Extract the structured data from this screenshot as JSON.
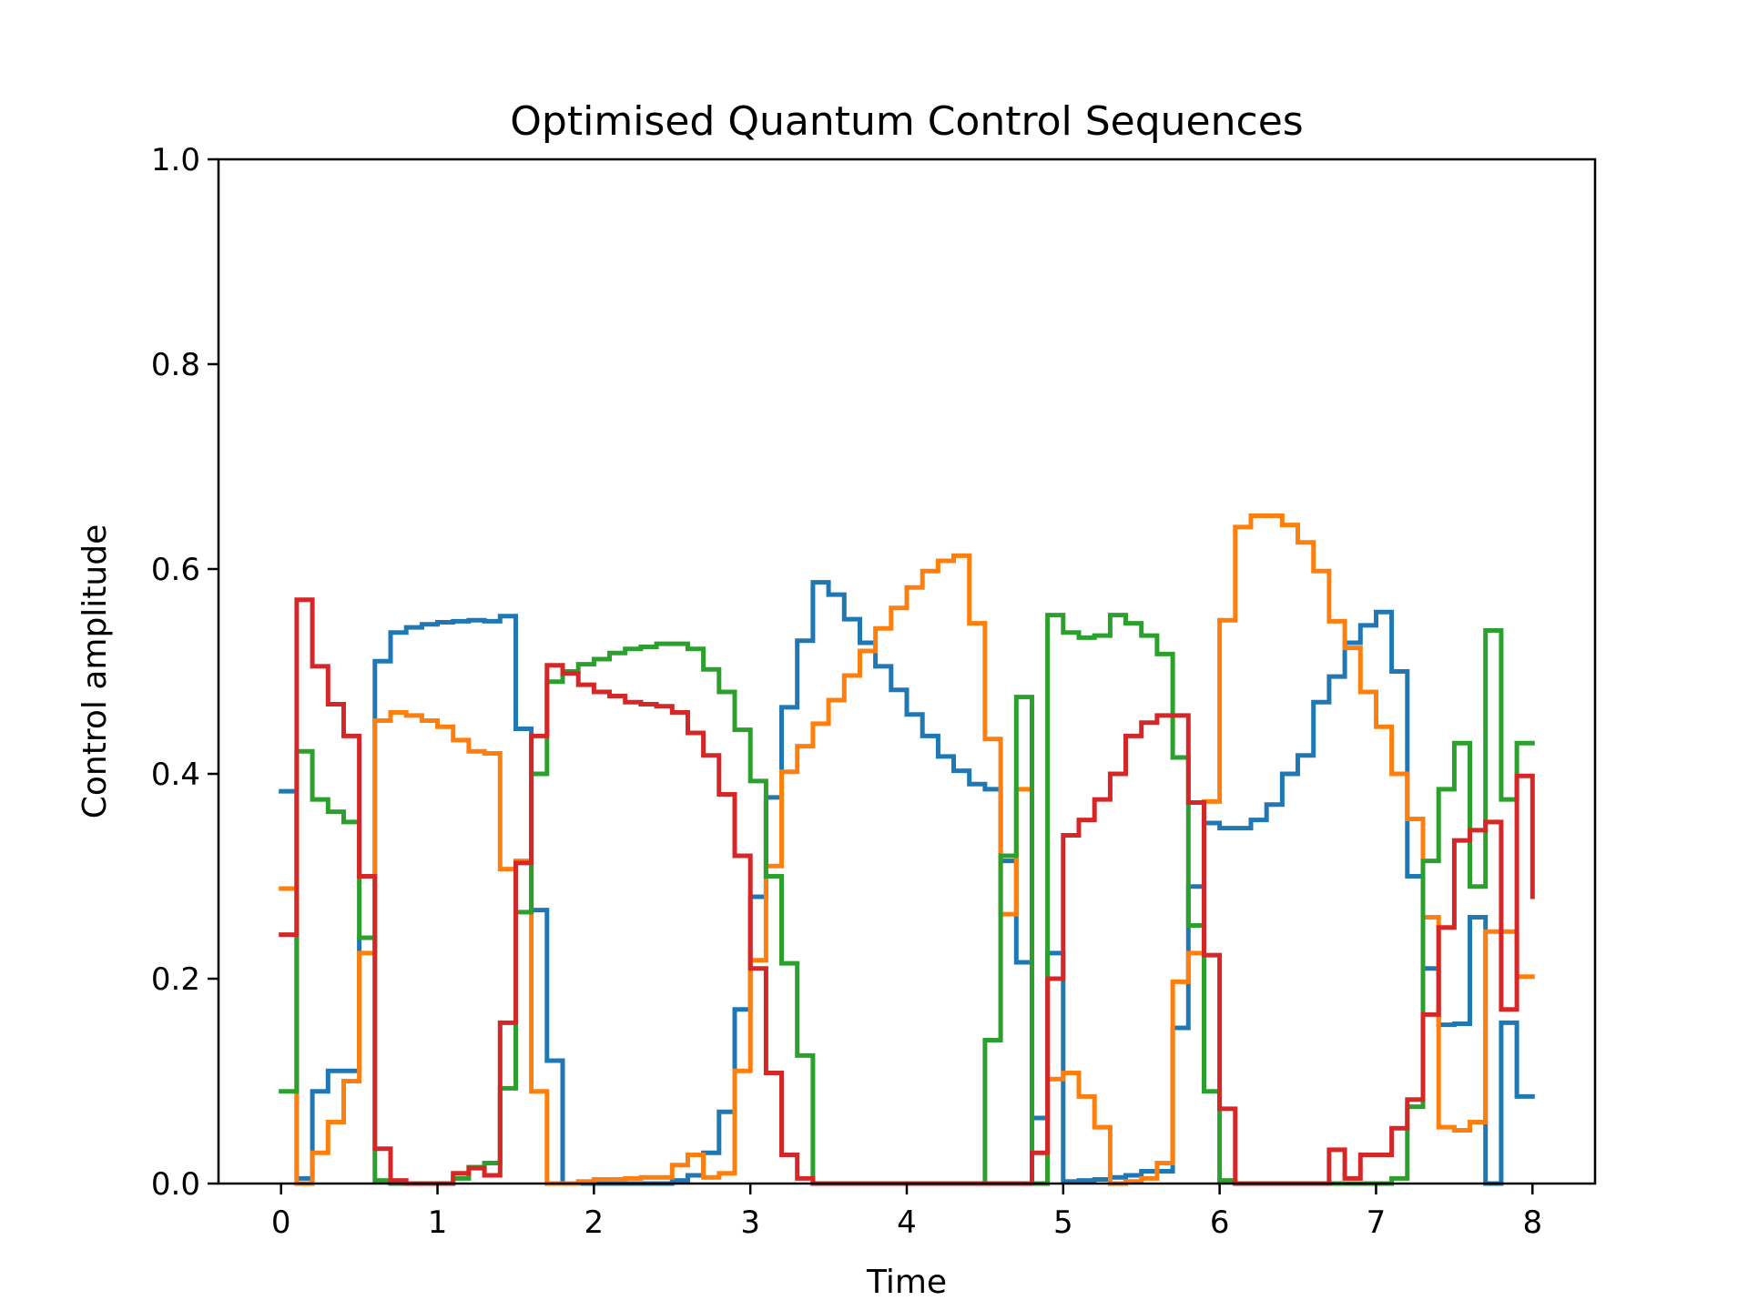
{
  "chart_data": {
    "type": "line",
    "step": "post",
    "title": "Optimised Quantum Control Sequences",
    "xlabel": "Time",
    "ylabel": "Control amplitude",
    "xlim": [
      -0.4,
      8.4
    ],
    "ylim": [
      0,
      1
    ],
    "xticks": [
      "0",
      "1",
      "2",
      "3",
      "4",
      "5",
      "6",
      "7",
      "8"
    ],
    "yticks": [
      "0.0",
      "0.2",
      "0.4",
      "0.6",
      "0.8",
      "1.0"
    ],
    "grid": false,
    "legend": "none",
    "x": [
      0,
      0.1,
      0.2,
      0.3,
      0.4,
      0.5,
      0.6,
      0.7,
      0.8,
      0.9,
      1.0,
      1.1,
      1.2,
      1.3,
      1.4,
      1.5,
      1.6,
      1.7,
      1.8,
      1.9,
      2.0,
      2.1,
      2.2,
      2.3,
      2.4,
      2.5,
      2.6,
      2.7,
      2.8,
      2.9,
      3.0,
      3.1,
      3.2,
      3.3,
      3.4,
      3.5,
      3.6,
      3.7,
      3.8,
      3.9,
      4.0,
      4.1,
      4.2,
      4.3,
      4.4,
      4.5,
      4.6,
      4.7,
      4.8,
      4.9,
      5.0,
      5.1,
      5.2,
      5.3,
      5.4,
      5.5,
      5.6,
      5.7,
      5.8,
      5.9,
      6.0,
      6.1,
      6.2,
      6.3,
      6.4,
      6.5,
      6.6,
      6.7,
      6.8,
      6.9,
      7.0,
      7.1,
      7.2,
      7.3,
      7.4,
      7.5,
      7.6,
      7.7,
      7.8,
      7.9,
      8.0
    ],
    "series": [
      {
        "color": "#1f77b4",
        "values": [
          0.383,
          0.005,
          0.09,
          0.11,
          0.11,
          0.24,
          0.51,
          0.538,
          0.543,
          0.546,
          0.548,
          0.549,
          0.55,
          0.549,
          0.554,
          0.444,
          0.267,
          0.12,
          0.0,
          0.0,
          0.0,
          0.0,
          0.0,
          0.0,
          0.0,
          0.003,
          0.008,
          0.03,
          0.07,
          0.17,
          0.28,
          0.377,
          0.465,
          0.53,
          0.587,
          0.575,
          0.551,
          0.528,
          0.505,
          0.482,
          0.458,
          0.437,
          0.417,
          0.403,
          0.39,
          0.385,
          0.315,
          0.216,
          0.064,
          0.225,
          0.002,
          0.003,
          0.004,
          0.006,
          0.008,
          0.012,
          0.012,
          0.152,
          0.29,
          0.352,
          0.347,
          0.347,
          0.355,
          0.37,
          0.4,
          0.418,
          0.47,
          0.495,
          0.528,
          0.545,
          0.558,
          0.5,
          0.3,
          0.21,
          0.155,
          0.156,
          0.26,
          0.0,
          0.157,
          0.085,
          0.085
        ]
      },
      {
        "color": "#ff7f0e",
        "values": [
          0.288,
          0.0,
          0.03,
          0.06,
          0.1,
          0.225,
          0.452,
          0.46,
          0.457,
          0.452,
          0.446,
          0.433,
          0.422,
          0.42,
          0.307,
          0.315,
          0.09,
          0.0,
          0.0,
          0.002,
          0.004,
          0.004,
          0.005,
          0.006,
          0.006,
          0.018,
          0.028,
          0.006,
          0.01,
          0.11,
          0.218,
          0.31,
          0.402,
          0.427,
          0.449,
          0.472,
          0.496,
          0.52,
          0.542,
          0.562,
          0.582,
          0.598,
          0.608,
          0.613,
          0.547,
          0.434,
          0.263,
          0.385,
          0.0,
          0.102,
          0.108,
          0.085,
          0.055,
          0.0,
          0.002,
          0.005,
          0.02,
          0.197,
          0.225,
          0.373,
          0.55,
          0.641,
          0.652,
          0.652,
          0.643,
          0.626,
          0.598,
          0.549,
          0.523,
          0.48,
          0.446,
          0.4,
          0.356,
          0.26,
          0.055,
          0.052,
          0.06,
          0.246,
          0.246,
          0.202,
          0.202
        ]
      },
      {
        "color": "#2ca02c",
        "values": [
          0.09,
          0.422,
          0.375,
          0.363,
          0.353,
          0.24,
          0.003,
          0.0,
          0.0,
          0.0,
          0.0,
          0.005,
          0.016,
          0.02,
          0.093,
          0.265,
          0.4,
          0.49,
          0.5,
          0.507,
          0.512,
          0.518,
          0.522,
          0.524,
          0.527,
          0.527,
          0.522,
          0.502,
          0.48,
          0.443,
          0.393,
          0.3,
          0.215,
          0.125,
          0.0,
          0.0,
          0.0,
          0.0,
          0.0,
          0.0,
          0.0,
          0.0,
          0.0,
          0.0,
          0.0,
          0.14,
          0.32,
          0.475,
          0.0,
          0.555,
          0.538,
          0.533,
          0.535,
          0.555,
          0.547,
          0.535,
          0.517,
          0.416,
          0.252,
          0.09,
          0.003,
          0.0,
          0.0,
          0.0,
          0.0,
          0.0,
          0.0,
          0.0,
          0.0,
          0.0,
          0.0,
          0.005,
          0.075,
          0.315,
          0.385,
          0.43,
          0.29,
          0.54,
          0.375,
          0.43,
          0.43
        ]
      },
      {
        "color": "#d62728",
        "values": [
          0.243,
          0.57,
          0.505,
          0.468,
          0.437,
          0.3,
          0.034,
          0.003,
          0.0,
          0.0,
          0.0,
          0.01,
          0.015,
          0.008,
          0.157,
          0.313,
          0.437,
          0.506,
          0.498,
          0.487,
          0.48,
          0.476,
          0.47,
          0.468,
          0.466,
          0.46,
          0.44,
          0.418,
          0.38,
          0.32,
          0.21,
          0.108,
          0.028,
          0.005,
          0.0,
          0.0,
          0.0,
          0.0,
          0.0,
          0.0,
          0.0,
          0.0,
          0.0,
          0.0,
          0.0,
          0.0,
          0.0,
          0.0,
          0.03,
          0.2,
          0.34,
          0.355,
          0.375,
          0.4,
          0.437,
          0.45,
          0.457,
          0.457,
          0.372,
          0.223,
          0.073,
          0.0,
          0.0,
          0.0,
          0.0,
          0.0,
          0.0,
          0.033,
          0.005,
          0.028,
          0.028,
          0.054,
          0.082,
          0.165,
          0.25,
          0.335,
          0.345,
          0.353,
          0.17,
          0.398,
          0.28
        ]
      }
    ]
  }
}
